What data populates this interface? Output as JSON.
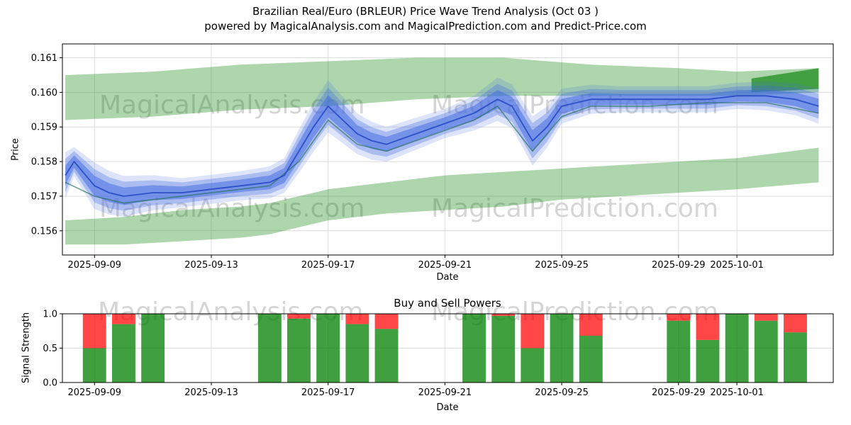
{
  "title": {
    "line1": "Brazilian Real/Euro (BRLEUR) Price Wave Trend Analysis (Oct 03 )",
    "line2": "powered by MagicalAnalysis.com and MagicalPrediction.com and Predict-Price.com"
  },
  "watermarks": {
    "analysis": "MagicalAnalysis.com",
    "prediction": "MagicalPrediction.com"
  },
  "colors": {
    "band_green": "rgba(0,128,0,0.32)",
    "band_green_dark": "rgba(0,128,0,0.62)",
    "wave_blue": "#4169e1",
    "wave_line": "#2f4fc7",
    "secondary_line": "rgba(32,110,88,0.65)",
    "buy_green": "rgba(0,128,0,0.75)",
    "sell_red": "rgba(255,0,0,0.72)",
    "grid": "#dcdcdc",
    "spine": "#000000",
    "watermark": "rgba(128,128,128,0.33)"
  },
  "chart_data": [
    {
      "name": "price-panel",
      "type": "line",
      "title": "",
      "xlabel": "Date",
      "ylabel": "Price",
      "xlim": [
        7.9,
        34.3
      ],
      "ylim": [
        0.1553,
        0.1614
      ],
      "grid": true,
      "legend": "none",
      "xticks": [
        {
          "v": 9,
          "label": "2025-09-09"
        },
        {
          "v": 13,
          "label": "2025-09-13"
        },
        {
          "v": 17,
          "label": "2025-09-17"
        },
        {
          "v": 21,
          "label": "2025-09-21"
        },
        {
          "v": 25,
          "label": "2025-09-25"
        },
        {
          "v": 29,
          "label": "2025-09-29"
        },
        {
          "v": 31,
          "label": "2025-10-01"
        }
      ],
      "yticks": [
        {
          "v": 0.156,
          "label": "0.156"
        },
        {
          "v": 0.157,
          "label": "0.157"
        },
        {
          "v": 0.158,
          "label": "0.158"
        },
        {
          "v": 0.159,
          "label": "0.159"
        },
        {
          "v": 0.16,
          "label": "0.160"
        },
        {
          "v": 0.161,
          "label": "0.161"
        }
      ],
      "green_channel": {
        "lower_band": {
          "x": [
            8,
            10,
            12,
            14,
            15,
            16,
            17,
            19,
            21,
            23,
            25,
            27,
            29,
            31,
            33.8
          ],
          "top": [
            0.1563,
            0.1564,
            0.1566,
            0.1567,
            0.1568,
            0.157,
            0.1572,
            0.1574,
            0.1576,
            0.1577,
            0.1578,
            0.1579,
            0.158,
            0.1581,
            0.1584
          ],
          "bottom": [
            0.1556,
            0.1556,
            0.1557,
            0.1558,
            0.1559,
            0.1561,
            0.1563,
            0.1565,
            0.1566,
            0.1567,
            0.1569,
            0.157,
            0.1571,
            0.1572,
            0.1574
          ]
        },
        "upper_band": {
          "x": [
            8,
            11,
            14,
            17,
            20,
            23,
            26,
            29,
            31,
            33.8
          ],
          "top": [
            0.1605,
            0.1606,
            0.1608,
            0.1609,
            0.161,
            0.161,
            0.1608,
            0.1607,
            0.1606,
            0.1607
          ],
          "bottom": [
            0.1592,
            0.1593,
            0.1595,
            0.1596,
            0.1598,
            0.1599,
            0.1599,
            0.1599,
            0.1599,
            0.16
          ]
        },
        "highlight_wedge": {
          "x": [
            31.5,
            33.8
          ],
          "top": [
            0.1604,
            0.1607
          ],
          "bottom": [
            0.16,
            0.1601
          ]
        }
      },
      "wave": {
        "x": [
          8.0,
          8.3,
          9.0,
          9.5,
          10.0,
          11.0,
          12.0,
          13.0,
          14.0,
          15.0,
          15.5,
          16.0,
          16.5,
          17.0,
          17.5,
          18.0,
          18.5,
          19.0,
          20.0,
          21.0,
          22.0,
          22.8,
          23.3,
          24.0,
          24.5,
          25.0,
          26.0,
          27.0,
          28.0,
          29.0,
          30.0,
          31.0,
          32.0,
          33.0,
          33.8
        ],
        "price": [
          0.1576,
          0.158,
          0.1573,
          0.1571,
          0.157,
          0.1571,
          0.1571,
          0.1572,
          0.1573,
          0.1574,
          0.1576,
          0.1583,
          0.159,
          0.1596,
          0.1592,
          0.1588,
          0.1586,
          0.1585,
          0.1588,
          0.1591,
          0.1594,
          0.1598,
          0.1596,
          0.1586,
          0.159,
          0.1596,
          0.1598,
          0.1598,
          0.1598,
          0.1598,
          0.1598,
          0.1599,
          0.1599,
          0.1598,
          0.1596
        ],
        "volatility": [
          1.6,
          1.0,
          1.6,
          1.5,
          1.4,
          1.2,
          1.0,
          1.0,
          1.0,
          1.1,
          1.2,
          1.5,
          1.7,
          1.8,
          1.6,
          1.4,
          1.3,
          1.2,
          1.1,
          1.0,
          1.2,
          1.5,
          1.5,
          1.7,
          1.4,
          1.2,
          1.0,
          0.9,
          0.9,
          0.9,
          0.9,
          0.9,
          1.0,
          1.1,
          1.2
        ],
        "bands": [
          {
            "width": 0.00018,
            "opacity": 0.5
          },
          {
            "width": 0.0003,
            "opacity": 0.32
          },
          {
            "width": 0.00042,
            "opacity": 0.18
          }
        ]
      },
      "secondary_line": {
        "x": [
          8.0,
          9.0,
          10.0,
          11.0,
          12.0,
          13.0,
          14.0,
          15.0,
          16.0,
          17.0,
          18.0,
          19.0,
          20.0,
          21.0,
          22.0,
          22.8,
          24.0,
          25.0,
          26.0,
          28.0,
          30.0,
          32.0,
          33.8
        ],
        "price": [
          0.1574,
          0.157,
          0.1568,
          0.1569,
          0.157,
          0.1571,
          0.1572,
          0.1573,
          0.158,
          0.1592,
          0.1585,
          0.1583,
          0.1586,
          0.1589,
          0.1592,
          0.1596,
          0.1583,
          0.1593,
          0.1596,
          0.1596,
          0.1597,
          0.1597,
          0.1594
        ]
      }
    },
    {
      "name": "signal-panel",
      "type": "bar",
      "title": "Buy and Sell Powers",
      "xlabel": "Date",
      "ylabel": "Signal Strength",
      "xlim": [
        7.9,
        34.3
      ],
      "ylim": [
        0,
        1
      ],
      "grid": true,
      "xticks": [
        {
          "v": 9,
          "label": "2025-09-09"
        },
        {
          "v": 13,
          "label": "2025-09-13"
        },
        {
          "v": 17,
          "label": "2025-09-17"
        },
        {
          "v": 21,
          "label": "2025-09-21"
        },
        {
          "v": 25,
          "label": "2025-09-25"
        },
        {
          "v": 29,
          "label": "2025-09-29"
        },
        {
          "v": 31,
          "label": "2025-10-01"
        }
      ],
      "yticks": [
        {
          "v": 0,
          "label": "0.0"
        },
        {
          "v": 0.5,
          "label": "0.5"
        },
        {
          "v": 1,
          "label": "1.0"
        }
      ],
      "bars": {
        "width": 0.8,
        "labels": [
          "2025-09-09",
          "2025-09-10",
          "2025-09-11",
          "2025-09-15",
          "2025-09-16",
          "2025-09-17",
          "2025-09-18",
          "2025-09-19",
          "2025-09-22",
          "2025-09-23",
          "2025-09-24",
          "2025-09-25",
          "2025-09-26",
          "2025-09-29",
          "2025-09-30",
          "2025-10-01",
          "2025-10-02",
          "2025-10-03"
        ],
        "x": [
          9,
          10,
          11,
          15,
          16,
          17,
          18,
          19,
          22,
          23,
          24,
          25,
          26,
          29,
          30,
          31,
          32,
          33
        ],
        "buy": [
          0.5,
          0.85,
          1.0,
          1.0,
          0.93,
          1.0,
          0.85,
          0.78,
          1.0,
          0.97,
          0.5,
          1.0,
          0.68,
          0.9,
          0.62,
          1.0,
          0.9,
          0.73
        ],
        "sell": [
          0.5,
          0.15,
          0.0,
          0.0,
          0.07,
          0.0,
          0.15,
          0.22,
          0.0,
          0.03,
          0.5,
          0.0,
          0.32,
          0.1,
          0.38,
          0.0,
          0.1,
          0.27
        ]
      }
    }
  ]
}
